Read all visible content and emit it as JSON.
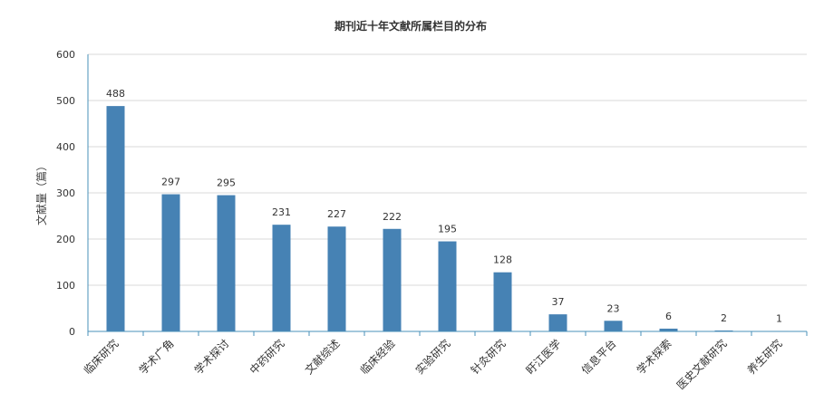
{
  "chart_data": {
    "type": "bar",
    "title": "期刊近十年文献所属栏目的分布",
    "xlabel": "",
    "ylabel": "文献量（篇）",
    "ylim": [
      0,
      600
    ],
    "yticks": [
      0,
      100,
      200,
      300,
      400,
      500,
      600
    ],
    "grid": true,
    "bar_color": "#4682b4",
    "categories": [
      "临床研究",
      "学术广角",
      "学术探讨",
      "中药研究",
      "文献综述",
      "临床经验",
      "实验研究",
      "针灸研究",
      "盱江医学",
      "信息平台",
      "学术探索",
      "医史文献研究",
      "养生研究"
    ],
    "values": [
      488,
      297,
      295,
      231,
      227,
      222,
      195,
      128,
      37,
      23,
      6,
      2,
      1
    ]
  }
}
